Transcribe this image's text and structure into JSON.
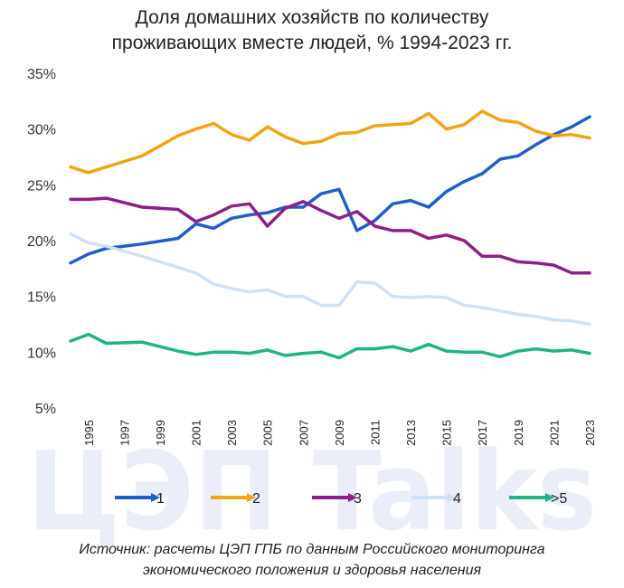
{
  "title_line1": "Доля домашних хозяйств по количеству",
  "title_line2": "проживающих вместе людей, % 1994-2023 гг.",
  "source_line1": "Источник: расчеты ЦЭП ГПБ по данным Российского мониторинга",
  "source_line2": "экономического положения и здоровья населения",
  "watermark_text": "ЦЭП Talks",
  "chart_data": {
    "type": "line",
    "x": [
      1994,
      1995,
      1996,
      1998,
      2000,
      2001,
      2002,
      2003,
      2004,
      2005,
      2006,
      2007,
      2008,
      2009,
      2010,
      2011,
      2012,
      2013,
      2014,
      2015,
      2016,
      2017,
      2018,
      2019,
      2020,
      2021,
      2022,
      2023
    ],
    "x_tick_labels": [
      "1995",
      "1997",
      "1999",
      "2001",
      "2003",
      "2005",
      "2007",
      "2009",
      "2011",
      "2013",
      "2015",
      "2017",
      "2019",
      "2021",
      "2023"
    ],
    "y_tick_labels": [
      "35%",
      "30%",
      "25%",
      "20%",
      "15%",
      "10%",
      "5%"
    ],
    "ylim": [
      5,
      35
    ],
    "y_ticks": [
      35,
      30,
      25,
      20,
      15,
      10,
      5
    ],
    "grid": false,
    "legend_position": "bottom",
    "series": [
      {
        "name": "1",
        "color": "#1f5fc7",
        "values": [
          18.0,
          18.8,
          19.3,
          19.7,
          20.2,
          21.5,
          21.1,
          22.0,
          22.3,
          22.5,
          23.0,
          23.0,
          24.2,
          24.6,
          20.9,
          21.8,
          23.3,
          23.6,
          23.0,
          24.4,
          25.3,
          26.0,
          27.3,
          27.6,
          28.6,
          29.5,
          30.2,
          31.1
        ]
      },
      {
        "name": "2",
        "color": "#f2a413",
        "values": [
          26.6,
          26.1,
          26.6,
          27.6,
          29.4,
          30.0,
          30.5,
          29.5,
          29.0,
          30.2,
          29.3,
          28.7,
          28.9,
          29.6,
          29.7,
          30.3,
          30.4,
          30.5,
          31.4,
          30.0,
          30.4,
          31.6,
          30.8,
          30.6,
          29.8,
          29.4,
          29.5,
          29.2
        ]
      },
      {
        "name": "3",
        "color": "#8e1f86",
        "values": [
          23.7,
          23.7,
          23.8,
          23.0,
          22.8,
          21.7,
          22.3,
          23.1,
          23.3,
          21.3,
          22.9,
          23.5,
          22.7,
          22.0,
          22.6,
          21.3,
          20.9,
          20.9,
          20.2,
          20.5,
          20.0,
          18.6,
          18.6,
          18.1,
          18.0,
          17.8,
          17.1,
          17.1
        ]
      },
      {
        "name": "4",
        "color": "#cfe2f5",
        "values": [
          20.6,
          19.8,
          19.5,
          18.6,
          17.6,
          17.1,
          16.1,
          15.7,
          15.4,
          15.6,
          15.0,
          15.0,
          14.2,
          14.2,
          16.3,
          16.2,
          15.0,
          14.9,
          15.0,
          14.9,
          14.2,
          14.0,
          13.7,
          13.4,
          13.2,
          12.9,
          12.8,
          12.5
        ]
      },
      {
        "name": ">5",
        "color": "#1db584",
        "values": [
          11.0,
          11.6,
          10.8,
          10.9,
          10.1,
          9.8,
          10.0,
          10.0,
          9.9,
          10.2,
          9.7,
          9.9,
          10.0,
          9.5,
          10.3,
          10.3,
          10.5,
          10.1,
          10.7,
          10.1,
          10.0,
          10.0,
          9.6,
          10.1,
          10.3,
          10.1,
          10.2,
          9.9
        ]
      }
    ]
  }
}
